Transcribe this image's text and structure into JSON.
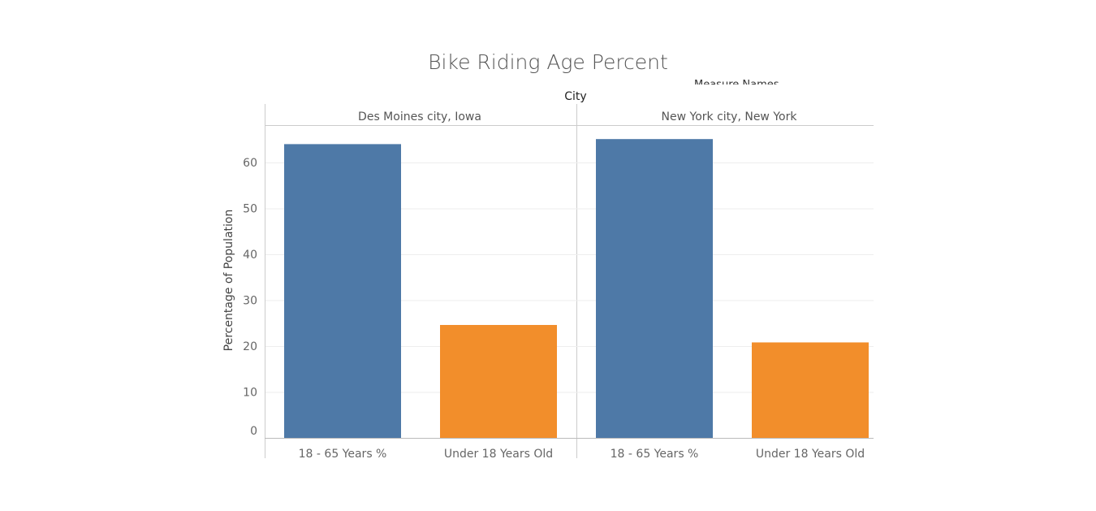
{
  "chart_data": {
    "type": "bar",
    "title": "Bike Riding Age Percent",
    "legend_title": "Measure Names",
    "column_field": "City",
    "ylabel": "Percentage of Population",
    "ylim": [
      0,
      70
    ],
    "yticks": [
      0,
      10,
      20,
      30,
      40,
      50,
      60
    ],
    "grid": true,
    "categories": [
      "18 - 65 Years %",
      "Under 18 Years Old"
    ],
    "panels": [
      {
        "name": "Des Moines city, Iowa",
        "values": [
          64,
          24.6
        ]
      },
      {
        "name": "New York city, New York",
        "values": [
          65.1,
          20.8
        ]
      }
    ],
    "colors": {
      "18 - 65 Years %": "#4e79a7",
      "Under 18 Years Old": "#f28e2b"
    }
  }
}
